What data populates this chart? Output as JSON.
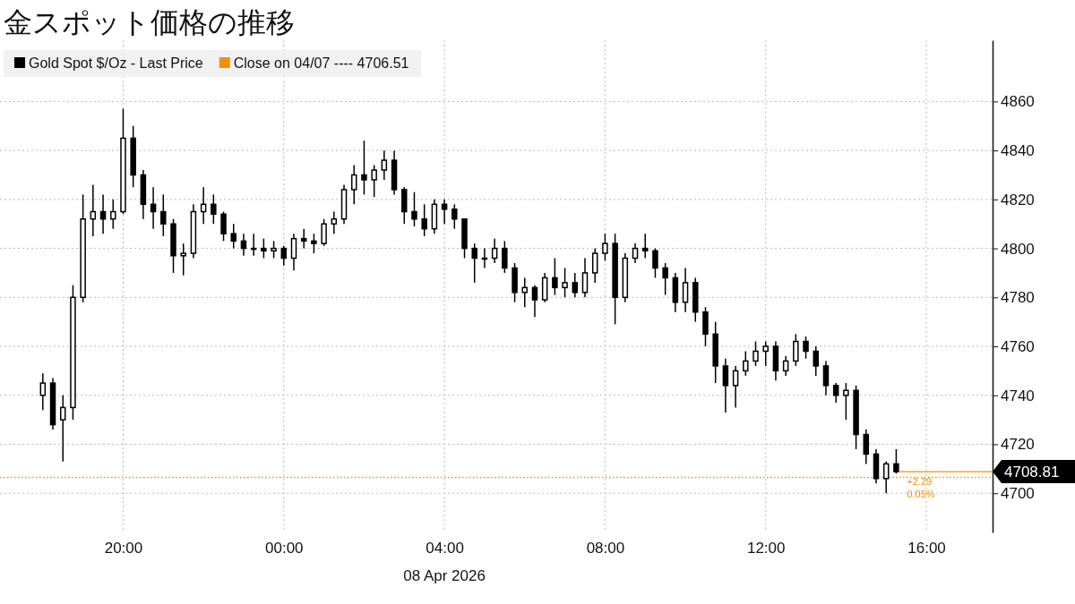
{
  "chart_data": {
    "type": "candlestick",
    "title": "金スポット価格の推移",
    "xlabel": "08 Apr 2026",
    "x": [
      "2026-04-07T18:00",
      "2026-04-07T18:15",
      "2026-04-07T18:30",
      "2026-04-07T18:45",
      "2026-04-07T19:00",
      "2026-04-07T19:15",
      "2026-04-07T19:30",
      "2026-04-07T19:45",
      "2026-04-07T20:00",
      "2026-04-07T20:15",
      "2026-04-07T20:30",
      "2026-04-07T20:45",
      "2026-04-07T21:00",
      "2026-04-07T21:15",
      "2026-04-07T21:30",
      "2026-04-07T21:45",
      "2026-04-07T22:00",
      "2026-04-07T22:15",
      "2026-04-07T22:30",
      "2026-04-07T22:45",
      "2026-04-07T23:00",
      "2026-04-07T23:15",
      "2026-04-07T23:30",
      "2026-04-07T23:45",
      "2026-04-08T00:00",
      "2026-04-08T00:15",
      "2026-04-08T00:30",
      "2026-04-08T00:45",
      "2026-04-08T01:00",
      "2026-04-08T01:15",
      "2026-04-08T01:30",
      "2026-04-08T01:45",
      "2026-04-08T02:00",
      "2026-04-08T02:15",
      "2026-04-08T02:30",
      "2026-04-08T02:45",
      "2026-04-08T03:00",
      "2026-04-08T03:15",
      "2026-04-08T03:30",
      "2026-04-08T03:45",
      "2026-04-08T04:00",
      "2026-04-08T04:15",
      "2026-04-08T04:30",
      "2026-04-08T04:45",
      "2026-04-08T05:00",
      "2026-04-08T05:15",
      "2026-04-08T05:30",
      "2026-04-08T05:45",
      "2026-04-08T06:00",
      "2026-04-08T06:15",
      "2026-04-08T06:30",
      "2026-04-08T06:45",
      "2026-04-08T07:00",
      "2026-04-08T07:15",
      "2026-04-08T07:30",
      "2026-04-08T07:45",
      "2026-04-08T08:00",
      "2026-04-08T08:15",
      "2026-04-08T08:30",
      "2026-04-08T08:45",
      "2026-04-08T09:00",
      "2026-04-08T09:15",
      "2026-04-08T09:30",
      "2026-04-08T09:45",
      "2026-04-08T10:00",
      "2026-04-08T10:15",
      "2026-04-08T10:30",
      "2026-04-08T10:45",
      "2026-04-08T11:00",
      "2026-04-08T11:15",
      "2026-04-08T11:30",
      "2026-04-08T11:45",
      "2026-04-08T12:00",
      "2026-04-08T12:15",
      "2026-04-08T12:30",
      "2026-04-08T12:45",
      "2026-04-08T13:00",
      "2026-04-08T13:15",
      "2026-04-08T13:30",
      "2026-04-08T13:45",
      "2026-04-08T14:00",
      "2026-04-08T14:15",
      "2026-04-08T14:30",
      "2026-04-08T14:45",
      "2026-04-08T15:00",
      "2026-04-08T15:15"
    ],
    "series": [
      {
        "name": "Gold Spot $/Oz - Last Price",
        "color": "#000000",
        "ohlc": [
          [
            4740,
            4749,
            4734,
            4745
          ],
          [
            4745,
            4747,
            4726,
            4728
          ],
          [
            4730,
            4740,
            4713,
            4735
          ],
          [
            4735,
            4785,
            4730,
            4780
          ],
          [
            4780,
            4822,
            4778,
            4812
          ],
          [
            4812,
            4826,
            4805,
            4815
          ],
          [
            4815,
            4822,
            4806,
            4812
          ],
          [
            4812,
            4820,
            4808,
            4815
          ],
          [
            4815,
            4857,
            4814,
            4845
          ],
          [
            4845,
            4850,
            4825,
            4830
          ],
          [
            4830,
            4832,
            4812,
            4818
          ],
          [
            4818,
            4825,
            4808,
            4815
          ],
          [
            4815,
            4822,
            4805,
            4810
          ],
          [
            4810,
            4812,
            4790,
            4797
          ],
          [
            4797,
            4802,
            4789,
            4798
          ],
          [
            4798,
            4818,
            4796,
            4815
          ],
          [
            4815,
            4825,
            4810,
            4818
          ],
          [
            4818,
            4822,
            4810,
            4814
          ],
          [
            4814,
            4815,
            4803,
            4806
          ],
          [
            4806,
            4810,
            4800,
            4803
          ],
          [
            4803,
            4806,
            4797,
            4800
          ],
          [
            4800,
            4806,
            4797,
            4800
          ],
          [
            4800,
            4804,
            4796,
            4799
          ],
          [
            4799,
            4803,
            4796,
            4800
          ],
          [
            4800,
            4801,
            4793,
            4796
          ],
          [
            4796,
            4806,
            4791,
            4804
          ],
          [
            4804,
            4808,
            4800,
            4803
          ],
          [
            4803,
            4806,
            4798,
            4802
          ],
          [
            4802,
            4812,
            4801,
            4810
          ],
          [
            4810,
            4815,
            4806,
            4812
          ],
          [
            4812,
            4826,
            4810,
            4824
          ],
          [
            4824,
            4834,
            4818,
            4830
          ],
          [
            4830,
            4844,
            4822,
            4828
          ],
          [
            4828,
            4834,
            4821,
            4832
          ],
          [
            4832,
            4840,
            4828,
            4836
          ],
          [
            4836,
            4840,
            4822,
            4824
          ],
          [
            4824,
            4825,
            4810,
            4815
          ],
          [
            4815,
            4823,
            4809,
            4812
          ],
          [
            4812,
            4818,
            4805,
            4808
          ],
          [
            4808,
            4820,
            4806,
            4818
          ],
          [
            4818,
            4820,
            4810,
            4816
          ],
          [
            4816,
            4818,
            4808,
            4812
          ],
          [
            4812,
            4812,
            4796,
            4800
          ],
          [
            4800,
            4802,
            4786,
            4796
          ],
          [
            4796,
            4800,
            4792,
            4796
          ],
          [
            4796,
            4804,
            4794,
            4800
          ],
          [
            4800,
            4803,
            4790,
            4792
          ],
          [
            4792,
            4794,
            4778,
            4782
          ],
          [
            4782,
            4788,
            4776,
            4784
          ],
          [
            4784,
            4785,
            4772,
            4779
          ],
          [
            4779,
            4790,
            4778,
            4788
          ],
          [
            4788,
            4796,
            4781,
            4784
          ],
          [
            4784,
            4792,
            4780,
            4786
          ],
          [
            4786,
            4790,
            4780,
            4782
          ],
          [
            4782,
            4796,
            4780,
            4790
          ],
          [
            4790,
            4800,
            4786,
            4798
          ],
          [
            4798,
            4806,
            4795,
            4802
          ],
          [
            4802,
            4806,
            4769,
            4780
          ],
          [
            4780,
            4798,
            4778,
            4796
          ],
          [
            4796,
            4802,
            4794,
            4800
          ],
          [
            4800,
            4806,
            4796,
            4799
          ],
          [
            4799,
            4800,
            4788,
            4792
          ],
          [
            4792,
            4794,
            4781,
            4788
          ],
          [
            4788,
            4790,
            4774,
            4778
          ],
          [
            4778,
            4792,
            4774,
            4786
          ],
          [
            4786,
            4788,
            4770,
            4774
          ],
          [
            4774,
            4776,
            4760,
            4765
          ],
          [
            4765,
            4770,
            4745,
            4752
          ],
          [
            4752,
            4755,
            4733,
            4744
          ],
          [
            4744,
            4752,
            4735,
            4750
          ],
          [
            4750,
            4758,
            4748,
            4754
          ],
          [
            4754,
            4762,
            4752,
            4758
          ],
          [
            4758,
            4762,
            4752,
            4760
          ],
          [
            4760,
            4762,
            4746,
            4750
          ],
          [
            4750,
            4756,
            4748,
            4754
          ],
          [
            4754,
            4765,
            4752,
            4762
          ],
          [
            4762,
            4764,
            4755,
            4758
          ],
          [
            4758,
            4760,
            4748,
            4752
          ],
          [
            4752,
            4754,
            4740,
            4744
          ],
          [
            4744,
            4745,
            4737,
            4740
          ],
          [
            4740,
            4745,
            4730,
            4742
          ],
          [
            4742,
            4744,
            4718,
            4724
          ],
          [
            4724,
            4726,
            4712,
            4716
          ],
          [
            4716,
            4718,
            4704,
            4706
          ],
          [
            4706,
            4713,
            4700,
            4712
          ],
          [
            4712,
            4718,
            4708,
            4708.81
          ]
        ]
      }
    ],
    "xlim": [
      "2026-04-07T16:56",
      "2026-04-08T17:39"
    ],
    "xticks": [
      {
        "value": "2026-04-07T20:00",
        "label": "20:00"
      },
      {
        "value": "2026-04-08T00:00",
        "label": "00:00"
      },
      {
        "value": "2026-04-08T04:00",
        "label": "04:00"
      },
      {
        "value": "2026-04-08T08:00",
        "label": "08:00"
      },
      {
        "value": "2026-04-08T12:00",
        "label": "12:00"
      },
      {
        "value": "2026-04-08T16:00",
        "label": "16:00"
      }
    ],
    "ylim": [
      4684,
      4885
    ],
    "yticks": [
      4700,
      4720,
      4740,
      4760,
      4780,
      4800,
      4820,
      4840,
      4860
    ],
    "ref_lines": [
      {
        "axis": "y",
        "value": 4706.51,
        "label": "Close on 04/07 ---- 4706.51",
        "color": "#f39200",
        "line_style": "dotted"
      }
    ],
    "annotations": [
      {
        "text": "4708.81",
        "x": "2026-04-08T15:15",
        "y": 4708.81
      },
      "+2.29",
      "0.05%"
    ],
    "grid": true,
    "legend": "top left"
  }
}
